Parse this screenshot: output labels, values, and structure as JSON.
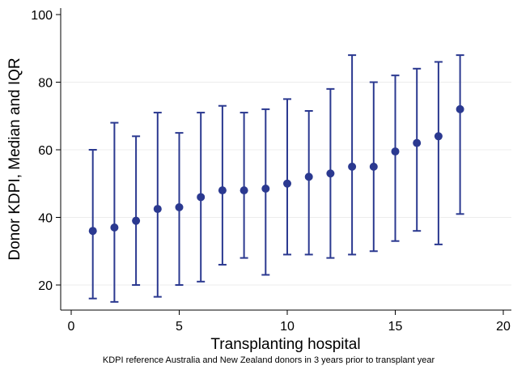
{
  "chart_data": {
    "type": "scatter",
    "title": "",
    "xlabel": "Transplanting hospital",
    "ylabel": "Donor KDPI, Median and IQR",
    "note": "KDPI reference Australia and New Zealand donors in 3 years prior to transplant year",
    "xlim": [
      0,
      20
    ],
    "ylim": [
      12,
      100
    ],
    "xticks": [
      0,
      5,
      10,
      15,
      20
    ],
    "yticks": [
      20,
      40,
      60,
      80,
      100
    ],
    "grid": true,
    "legend": "none",
    "color": "#2b3990",
    "points": [
      {
        "x": 1,
        "median": 36,
        "q1": 16,
        "q3": 60
      },
      {
        "x": 2,
        "median": 37,
        "q1": 15,
        "q3": 68
      },
      {
        "x": 3,
        "median": 39,
        "q1": 20,
        "q3": 64
      },
      {
        "x": 4,
        "median": 42.5,
        "q1": 16.5,
        "q3": 71
      },
      {
        "x": 5,
        "median": 43,
        "q1": 20,
        "q3": 65
      },
      {
        "x": 6,
        "median": 46,
        "q1": 21,
        "q3": 71
      },
      {
        "x": 7,
        "median": 48,
        "q1": 26,
        "q3": 73
      },
      {
        "x": 8,
        "median": 48,
        "q1": 28,
        "q3": 71
      },
      {
        "x": 9,
        "median": 48.5,
        "q1": 23,
        "q3": 72
      },
      {
        "x": 10,
        "median": 50,
        "q1": 29,
        "q3": 75
      },
      {
        "x": 11,
        "median": 52,
        "q1": 29,
        "q3": 71.5
      },
      {
        "x": 12,
        "median": 53,
        "q1": 28,
        "q3": 78
      },
      {
        "x": 13,
        "median": 55,
        "q1": 29,
        "q3": 88
      },
      {
        "x": 14,
        "median": 55,
        "q1": 30,
        "q3": 80
      },
      {
        "x": 15,
        "median": 59.5,
        "q1": 33,
        "q3": 82
      },
      {
        "x": 16,
        "median": 62,
        "q1": 36,
        "q3": 84
      },
      {
        "x": 17,
        "median": 64,
        "q1": 32,
        "q3": 86
      },
      {
        "x": 18,
        "median": 72,
        "q1": 41,
        "q3": 88
      }
    ]
  }
}
